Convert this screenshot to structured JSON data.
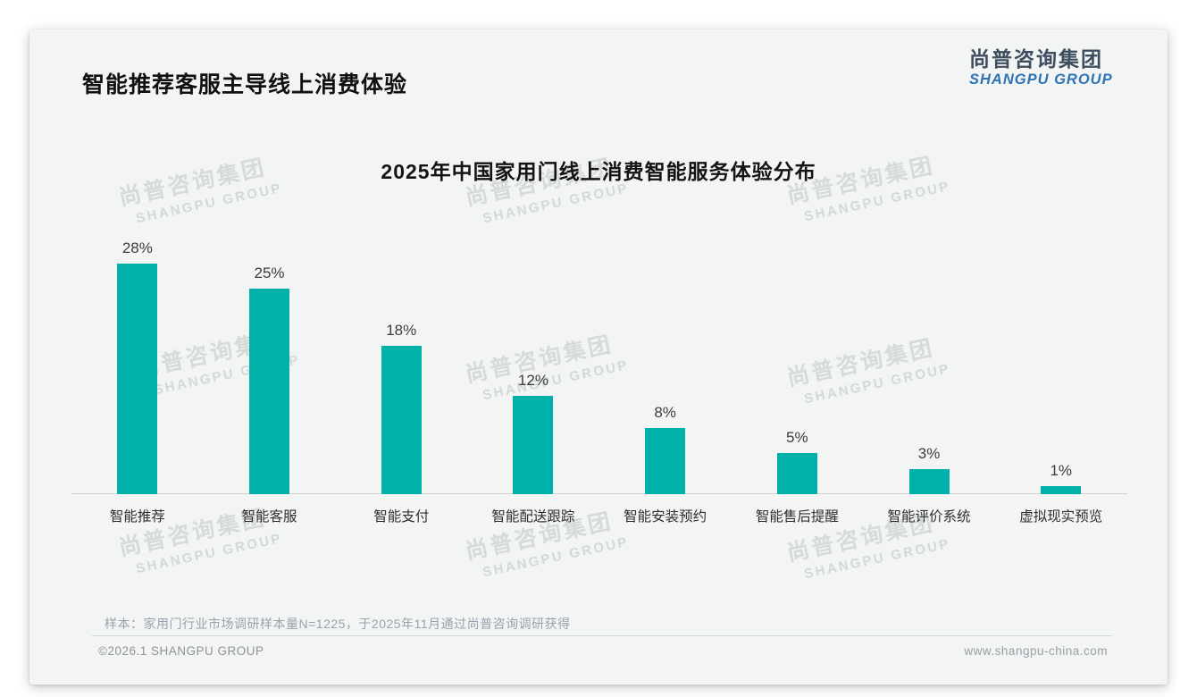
{
  "header": {
    "title": "智能推荐客服主导线上消费体验"
  },
  "brand": {
    "name_cn": "尚普咨询集团",
    "name_en": "SHANGPU GROUP"
  },
  "watermark": {
    "line1": "尚普咨询集团",
    "line2": "SHANGPU GROUP"
  },
  "colors": {
    "bar": "#00b1a9",
    "logo_blue": "#2e74b5",
    "logo_dark": "#3f4e5f"
  },
  "chart_data": {
    "type": "bar",
    "title": "2025年中国家用门线上消费智能服务体验分布",
    "categories": [
      "智能推荐",
      "智能客服",
      "智能支付",
      "智能配送跟踪",
      "智能安装预约",
      "智能售后提醒",
      "智能评价系统",
      "虚拟现实预览"
    ],
    "values": [
      28,
      25,
      18,
      12,
      8,
      5,
      3,
      1
    ],
    "value_labels": [
      "28%",
      "25%",
      "18%",
      "12%",
      "8%",
      "5%",
      "3%",
      "1%"
    ],
    "xlabel": "",
    "ylabel": "",
    "ylim": [
      0,
      30
    ],
    "grid": false,
    "legend": false,
    "bar_color": "#00b1a9"
  },
  "footnote": {
    "text": "样本：家用门行业市场调研样本量N=1225，于2025年11月通过尚普咨询调研获得"
  },
  "footer": {
    "copyright": "©2026.1 SHANGPU GROUP",
    "website": "www.shangpu-china.com"
  }
}
